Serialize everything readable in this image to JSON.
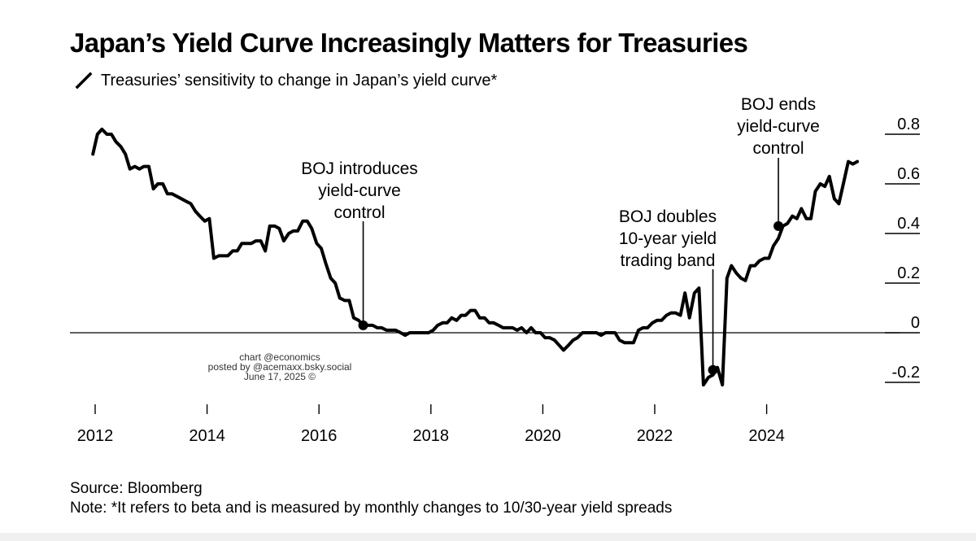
{
  "header": {
    "title": "Japan’s Yield Curve Increasingly Matters for Treasuries",
    "subtitle": "Treasuries’ sensitivity to change in Japan’s yield curve*"
  },
  "footer": {
    "source": "Source: Bloomberg",
    "note": "Note: *It refers to beta and is measured by monthly changes to 10/30-year yield spreads"
  },
  "credit": {
    "line1": "chart @economics",
    "line2": "posted by @acemaxx.bsky.social",
    "line3": "June 17, 2025 ©"
  },
  "colors": {
    "series": "#000000",
    "zero_line": "#000000",
    "text": "#000000"
  },
  "chart_data": {
    "type": "line",
    "title": "Japan’s Yield Curve Increasingly Matters for Treasuries",
    "subtitle": "Treasuries’ sensitivity to change in Japan’s yield curve*",
    "xlabel": "",
    "ylabel": "",
    "x_ticks": [
      "2012",
      "2014",
      "2016",
      "2018",
      "2020",
      "2022",
      "2024"
    ],
    "y_ticks": [
      "0.8",
      "0.6",
      "0.4",
      "0.2",
      "0",
      "-0.2"
    ],
    "xlim": [
      2012,
      2025.67
    ],
    "ylim": [
      -0.25,
      0.85
    ],
    "y_axis_side": "right",
    "grid": false,
    "zero_line": true,
    "series": [
      {
        "name": "Treasuries’ sensitivity to change in Japan’s yield curve*",
        "points": [
          [
            2011.96,
            0.72
          ],
          [
            2012.04,
            0.8
          ],
          [
            2012.12,
            0.82
          ],
          [
            2012.21,
            0.8
          ],
          [
            2012.29,
            0.8
          ],
          [
            2012.37,
            0.77
          ],
          [
            2012.46,
            0.75
          ],
          [
            2012.54,
            0.72
          ],
          [
            2012.62,
            0.66
          ],
          [
            2012.71,
            0.67
          ],
          [
            2012.79,
            0.66
          ],
          [
            2012.87,
            0.67
          ],
          [
            2012.96,
            0.67
          ],
          [
            2013.04,
            0.58
          ],
          [
            2013.12,
            0.6
          ],
          [
            2013.21,
            0.6
          ],
          [
            2013.29,
            0.56
          ],
          [
            2013.37,
            0.56
          ],
          [
            2013.46,
            0.55
          ],
          [
            2013.54,
            0.54
          ],
          [
            2013.62,
            0.53
          ],
          [
            2013.71,
            0.52
          ],
          [
            2013.79,
            0.49
          ],
          [
            2013.87,
            0.47
          ],
          [
            2013.96,
            0.45
          ],
          [
            2014.04,
            0.46
          ],
          [
            2014.12,
            0.3
          ],
          [
            2014.21,
            0.31
          ],
          [
            2014.29,
            0.31
          ],
          [
            2014.37,
            0.31
          ],
          [
            2014.46,
            0.33
          ],
          [
            2014.54,
            0.33
          ],
          [
            2014.62,
            0.36
          ],
          [
            2014.71,
            0.36
          ],
          [
            2014.79,
            0.36
          ],
          [
            2014.87,
            0.37
          ],
          [
            2014.96,
            0.37
          ],
          [
            2015.04,
            0.33
          ],
          [
            2015.12,
            0.43
          ],
          [
            2015.21,
            0.43
          ],
          [
            2015.29,
            0.42
          ],
          [
            2015.37,
            0.37
          ],
          [
            2015.46,
            0.4
          ],
          [
            2015.54,
            0.41
          ],
          [
            2015.62,
            0.41
          ],
          [
            2015.71,
            0.45
          ],
          [
            2015.79,
            0.45
          ],
          [
            2015.87,
            0.42
          ],
          [
            2015.96,
            0.36
          ],
          [
            2016.04,
            0.34
          ],
          [
            2016.12,
            0.28
          ],
          [
            2016.21,
            0.22
          ],
          [
            2016.29,
            0.2
          ],
          [
            2016.37,
            0.14
          ],
          [
            2016.46,
            0.13
          ],
          [
            2016.54,
            0.13
          ],
          [
            2016.62,
            0.06
          ],
          [
            2016.71,
            0.05
          ],
          [
            2016.79,
            0.03
          ],
          [
            2016.87,
            0.03
          ],
          [
            2016.96,
            0.03
          ],
          [
            2017.04,
            0.02
          ],
          [
            2017.12,
            0.02
          ],
          [
            2017.21,
            0.01
          ],
          [
            2017.29,
            0.01
          ],
          [
            2017.37,
            0.01
          ],
          [
            2017.46,
            0.0
          ],
          [
            2017.54,
            -0.01
          ],
          [
            2017.62,
            0.0
          ],
          [
            2017.71,
            0.0
          ],
          [
            2017.79,
            0.0
          ],
          [
            2017.87,
            0.0
          ],
          [
            2017.96,
            0.0
          ],
          [
            2018.04,
            0.01
          ],
          [
            2018.12,
            0.03
          ],
          [
            2018.21,
            0.04
          ],
          [
            2018.29,
            0.04
          ],
          [
            2018.37,
            0.06
          ],
          [
            2018.46,
            0.05
          ],
          [
            2018.54,
            0.07
          ],
          [
            2018.62,
            0.07
          ],
          [
            2018.71,
            0.09
          ],
          [
            2018.79,
            0.09
          ],
          [
            2018.87,
            0.06
          ],
          [
            2018.96,
            0.06
          ],
          [
            2019.04,
            0.04
          ],
          [
            2019.12,
            0.04
          ],
          [
            2019.21,
            0.03
          ],
          [
            2019.29,
            0.02
          ],
          [
            2019.37,
            0.02
          ],
          [
            2019.46,
            0.02
          ],
          [
            2019.54,
            0.01
          ],
          [
            2019.62,
            0.02
          ],
          [
            2019.71,
            0.0
          ],
          [
            2019.79,
            0.02
          ],
          [
            2019.87,
            0.0
          ],
          [
            2019.96,
            0.0
          ],
          [
            2020.04,
            -0.02
          ],
          [
            2020.12,
            -0.02
          ],
          [
            2020.21,
            -0.03
          ],
          [
            2020.29,
            -0.05
          ],
          [
            2020.37,
            -0.07
          ],
          [
            2020.46,
            -0.05
          ],
          [
            2020.54,
            -0.03
          ],
          [
            2020.62,
            -0.02
          ],
          [
            2020.71,
            0.0
          ],
          [
            2020.79,
            0.0
          ],
          [
            2020.87,
            0.0
          ],
          [
            2020.96,
            0.0
          ],
          [
            2021.04,
            -0.01
          ],
          [
            2021.12,
            0.0
          ],
          [
            2021.21,
            0.0
          ],
          [
            2021.29,
            0.0
          ],
          [
            2021.37,
            -0.03
          ],
          [
            2021.46,
            -0.04
          ],
          [
            2021.54,
            -0.04
          ],
          [
            2021.62,
            -0.04
          ],
          [
            2021.71,
            0.01
          ],
          [
            2021.79,
            0.02
          ],
          [
            2021.87,
            0.02
          ],
          [
            2021.96,
            0.04
          ],
          [
            2022.04,
            0.05
          ],
          [
            2022.12,
            0.05
          ],
          [
            2022.21,
            0.07
          ],
          [
            2022.29,
            0.08
          ],
          [
            2022.37,
            0.08
          ],
          [
            2022.46,
            0.07
          ],
          [
            2022.54,
            0.16
          ],
          [
            2022.62,
            0.06
          ],
          [
            2022.71,
            0.16
          ],
          [
            2022.79,
            0.18
          ],
          [
            2022.87,
            -0.21
          ],
          [
            2022.96,
            -0.18
          ],
          [
            2023.04,
            -0.17
          ],
          [
            2023.12,
            -0.14
          ],
          [
            2023.21,
            -0.21
          ],
          [
            2023.29,
            0.22
          ],
          [
            2023.37,
            0.27
          ],
          [
            2023.46,
            0.24
          ],
          [
            2023.54,
            0.22
          ],
          [
            2023.62,
            0.21
          ],
          [
            2023.71,
            0.27
          ],
          [
            2023.79,
            0.27
          ],
          [
            2023.87,
            0.29
          ],
          [
            2023.96,
            0.3
          ],
          [
            2024.04,
            0.3
          ],
          [
            2024.12,
            0.35
          ],
          [
            2024.21,
            0.38
          ],
          [
            2024.29,
            0.43
          ],
          [
            2024.37,
            0.44
          ],
          [
            2024.46,
            0.47
          ],
          [
            2024.54,
            0.46
          ],
          [
            2024.62,
            0.5
          ],
          [
            2024.71,
            0.46
          ],
          [
            2024.79,
            0.46
          ],
          [
            2024.87,
            0.57
          ],
          [
            2024.96,
            0.6
          ],
          [
            2025.04,
            0.59
          ],
          [
            2025.12,
            0.63
          ],
          [
            2025.21,
            0.54
          ],
          [
            2025.29,
            0.52
          ],
          [
            2025.37,
            0.6
          ],
          [
            2025.46,
            0.69
          ],
          [
            2025.54,
            0.68
          ],
          [
            2025.62,
            0.69
          ]
        ]
      }
    ],
    "annotations": [
      {
        "id": "introduces",
        "label_lines": [
          "BOJ introduces",
          "yield-curve",
          "control"
        ],
        "x": 2016.79,
        "y": 0.03
      },
      {
        "id": "doubles",
        "label_lines": [
          "BOJ doubles",
          "10-year yield",
          "trading band"
        ],
        "x": 2023.04,
        "y": -0.15
      },
      {
        "id": "ends",
        "label_lines": [
          "BOJ ends",
          "yield-curve",
          "control"
        ],
        "x": 2024.21,
        "y": 0.43
      }
    ]
  }
}
